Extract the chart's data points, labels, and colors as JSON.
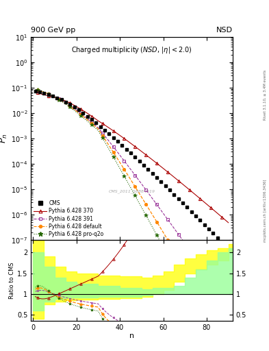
{
  "header_left": "900 GeV pp",
  "header_right": "NSD",
  "title": "Charged multiplicity (NSD, |#eta| < 2.0)",
  "ylabel_main": "$P_n$",
  "ylabel_ratio": "Ratio to CMS",
  "xlabel": "n",
  "watermark": "CMS_2011_S8884919",
  "ylim_main": [
    1e-07,
    10
  ],
  "ylim_ratio": [
    0.35,
    2.3
  ],
  "xlim": [
    -1,
    92
  ],
  "right_label1": "Rivet 3.1.10, ≥ 3.4M events",
  "right_label2": "mcplots.cern.ch [arXiv:1306.3436]",
  "colors": {
    "cms": "#000000",
    "p370": "#aa0000",
    "p391": "#993399",
    "pdef": "#ff8800",
    "ppq2": "#226600"
  },
  "band_yellow_color": "#ffff00",
  "band_green_color": "#99ff99"
}
